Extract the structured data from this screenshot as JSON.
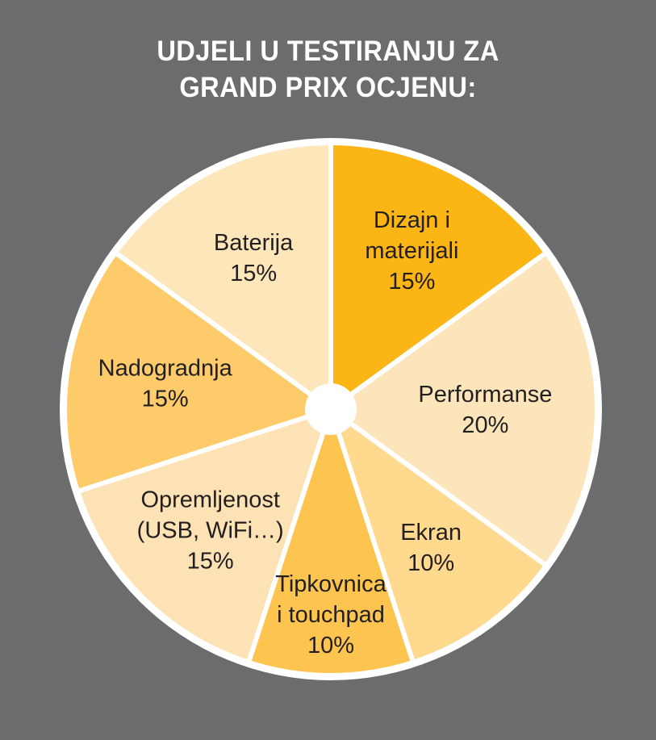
{
  "page": {
    "background": "#6B6C6E"
  },
  "chart_data": {
    "type": "pie",
    "title": "UDJELI U TESTIRANJU ZA\nGRAND PRIX OCJENU:",
    "title_color": "#FFFFFF",
    "label_color": "#231F20",
    "separator_color": "#FFFFFF",
    "separator_width": 6,
    "start_angle_deg": -90,
    "direction": "clockwise",
    "center": [
      410,
      507
    ],
    "radius": 330,
    "inner_hole_radius": 32,
    "legend": "none",
    "segments": [
      {
        "label": "Dizajn i materijali",
        "value": 15,
        "display": "15%",
        "color": "#FBB615",
        "lines": [
          "Dizajn i",
          "materijali",
          "15%"
        ],
        "label_r": 0.67
      },
      {
        "label": "Performanse",
        "value": 20,
        "display": "20%",
        "color": "#FCE5BB",
        "lines": [
          "Performanse",
          "20%"
        ],
        "label_r": 0.58
      },
      {
        "label": "Ekran",
        "value": 10,
        "display": "10%",
        "color": "#FED98E",
        "lines": [
          "Ekran",
          "10%"
        ],
        "label_r": 0.64
      },
      {
        "label": "Tipkovnica i touchpad",
        "value": 10,
        "display": "10%",
        "color": "#FDC44F",
        "lines": [
          "Tipkovnica",
          "i touchpad",
          "10%"
        ],
        "label_r": 0.77
      },
      {
        "label": "Opremljenost (USB, WiFi…)",
        "value": 15,
        "display": "15%",
        "color": "#FCE2B4",
        "lines": [
          "Opremljenost",
          "(USB, WiFi…)",
          "15%"
        ],
        "label_r": 0.64
      },
      {
        "label": "Nadogradnja",
        "value": 15,
        "display": "15%",
        "color": "#FDCB69",
        "lines": [
          "Nadogradnja",
          "15%"
        ],
        "label_r": 0.63
      },
      {
        "label": "Baterija",
        "value": 15,
        "display": "15%",
        "color": "#FDE6BA",
        "lines": [
          "Baterija",
          "15%"
        ],
        "label_r": 0.64
      }
    ]
  }
}
